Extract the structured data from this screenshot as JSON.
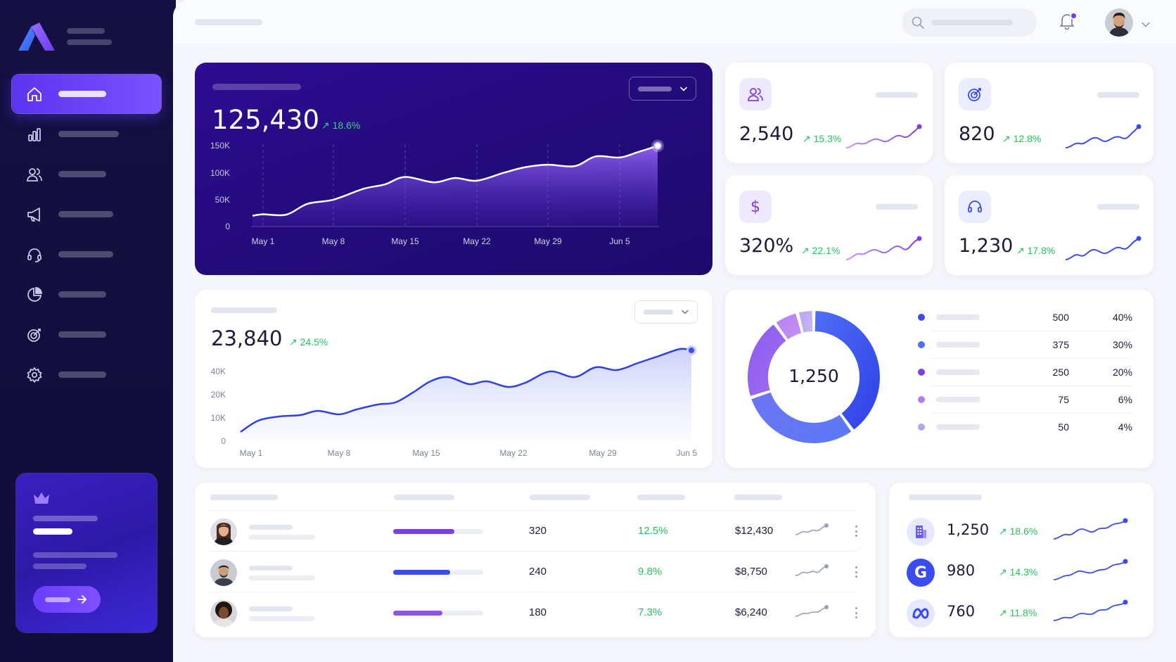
{
  "hero": {
    "value": "125,430",
    "trend": "↗ 18.6%",
    "y_ticks": [
      "150K",
      "100K",
      "50K",
      "0"
    ],
    "x_ticks": [
      "May 1",
      "May 8",
      "May 15",
      "May 22",
      "May 29",
      "Jun 5"
    ]
  },
  "stats": [
    {
      "value": "2,540",
      "trend": "↗ 15.3%",
      "icon": "users-icon"
    },
    {
      "value": "820",
      "trend": "↗ 12.8%",
      "icon": "target-icon"
    },
    {
      "value": "320%",
      "trend": "↗ 22.1%",
      "icon": "dollar-icon"
    },
    {
      "value": "1,230",
      "trend": "↗ 17.8%",
      "icon": "headset-icon"
    }
  ],
  "second": {
    "value": "23,840",
    "trend": "↗ 24.5%",
    "y_ticks": [
      "40K",
      "20K",
      "10K",
      "0"
    ],
    "x_ticks": [
      "May 1",
      "May 8",
      "May 15",
      "May 22",
      "May 29",
      "Jun 5"
    ]
  },
  "donut": {
    "center": "1,250",
    "rows": [
      {
        "value": "500",
        "pct": "40%",
        "color": "#3a4cf0"
      },
      {
        "value": "375",
        "pct": "30%",
        "color": "#4f6ef5"
      },
      {
        "value": "250",
        "pct": "20%",
        "color": "#7b3fe4"
      },
      {
        "value": "75",
        "pct": "6%",
        "color": "#b57cf0"
      },
      {
        "value": "50",
        "pct": "4%",
        "color": "#b4a5f0"
      }
    ]
  },
  "table": [
    {
      "c1": "320",
      "c2": "12.5%",
      "c3": "$12,430",
      "progress": 0.68,
      "bar": "#7b3fe4"
    },
    {
      "c1": "240",
      "c2": "9.8%",
      "c3": "$8,750",
      "progress": 0.63,
      "bar": "#3a4cf0"
    },
    {
      "c1": "180",
      "c2": "7.3%",
      "c3": "$6,240",
      "progress": 0.55,
      "bar": "#8b55e8"
    }
  ],
  "sources": [
    {
      "value": "1,250",
      "trend": "↗ 18.6%",
      "icon": "building-icon"
    },
    {
      "value": "980",
      "trend": "↗ 14.3%",
      "icon": "google-icon"
    },
    {
      "value": "760",
      "trend": "↗ 11.8%",
      "icon": "meta-icon"
    }
  ],
  "chart_data": [
    {
      "type": "area",
      "x": [
        "May 1",
        "May 8",
        "May 15",
        "May 22",
        "May 29",
        "Jun 5"
      ],
      "ylim": [
        0,
        150000
      ],
      "series": [
        {
          "values": [
            20000,
            55000,
            88000,
            85000,
            112000,
            130000
          ]
        }
      ]
    },
    {
      "type": "area",
      "x": [
        "May 1",
        "May 8",
        "May 15",
        "May 22",
        "May 29",
        "Jun 5"
      ],
      "y_ticks": [
        "0",
        "10K",
        "20K",
        "40K"
      ],
      "series": [
        {
          "values": [
            600,
            10000,
            20800,
            22400,
            28600,
            38000
          ]
        }
      ]
    },
    {
      "type": "pie",
      "labels": [
        "500",
        "375",
        "250",
        "75",
        "50"
      ],
      "values": [
        500,
        375,
        250,
        75,
        50
      ]
    }
  ]
}
